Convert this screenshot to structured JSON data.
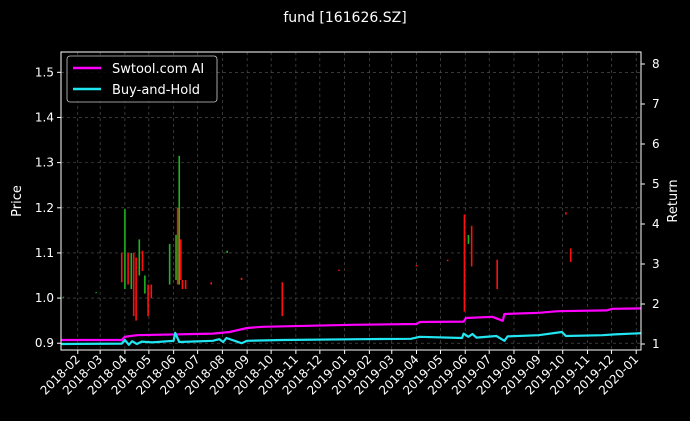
{
  "chart_data": {
    "type": "line",
    "title": "fund [161626.SZ]",
    "ylabel_left": "Price",
    "ylabel_right": "Return",
    "ylim_left": [
      0.885,
      1.545
    ],
    "ylim_right": [
      0.85,
      8.3
    ],
    "left_ticks": [
      0.9,
      1.0,
      1.1,
      1.2,
      1.3,
      1.4,
      1.5
    ],
    "left_tick_labels": [
      "0.9",
      "1.0",
      "1.1",
      "1.2",
      "1.3",
      "1.4",
      "1.5"
    ],
    "right_ticks": [
      1,
      2,
      3,
      4,
      5,
      6,
      7,
      8
    ],
    "right_tick_labels": [
      "1",
      "2",
      "3",
      "4",
      "5",
      "6",
      "7",
      "8"
    ],
    "x_ticks": [
      "2018-02",
      "2018-03",
      "2018-04",
      "2018-05",
      "2018-06",
      "2018-07",
      "2018-08",
      "2018-09",
      "2018-10",
      "2018-11",
      "2018-12",
      "2019-01",
      "2019-02",
      "2019-03",
      "2019-04",
      "2019-05",
      "2019-06",
      "2019-07",
      "2019-08",
      "2019-09",
      "2019-10",
      "2019-11",
      "2019-12",
      "2020-01"
    ],
    "x_range": [
      "2018-01-11",
      "2020-01-07"
    ],
    "grid": true,
    "legend_position": "top-left",
    "series": [
      {
        "name": "Swtool.com AI",
        "color": "#ff00ff",
        "axis": "right",
        "points": [
          [
            "2018-01-11",
            1.1
          ],
          [
            "2018-03-28",
            1.1
          ],
          [
            "2018-04-01",
            1.18
          ],
          [
            "2018-04-16",
            1.22
          ],
          [
            "2018-07-20",
            1.26
          ],
          [
            "2018-08-10",
            1.3
          ],
          [
            "2018-09-01",
            1.4
          ],
          [
            "2018-09-20",
            1.43
          ],
          [
            "2019-01-10",
            1.48
          ],
          [
            "2019-04-01",
            1.5
          ],
          [
            "2019-04-05",
            1.55
          ],
          [
            "2019-05-30",
            1.56
          ],
          [
            "2019-06-02",
            1.65
          ],
          [
            "2019-07-05",
            1.68
          ],
          [
            "2019-07-18",
            1.58
          ],
          [
            "2019-07-20",
            1.75
          ],
          [
            "2019-09-01",
            1.78
          ],
          [
            "2019-09-25",
            1.82
          ],
          [
            "2019-11-25",
            1.84
          ],
          [
            "2019-12-02",
            1.88
          ],
          [
            "2020-01-07",
            1.89
          ]
        ]
      },
      {
        "name": "Buy-and-Hold",
        "color": "#22e5f2",
        "axis": "right",
        "points": [
          [
            "2018-01-11",
            1.0
          ],
          [
            "2018-03-28",
            1.01
          ],
          [
            "2018-04-01",
            1.1
          ],
          [
            "2018-04-06",
            0.98
          ],
          [
            "2018-04-10",
            1.07
          ],
          [
            "2018-04-16",
            1.0
          ],
          [
            "2018-04-22",
            1.06
          ],
          [
            "2018-05-05",
            1.04
          ],
          [
            "2018-06-01",
            1.08
          ],
          [
            "2018-06-03",
            1.28
          ],
          [
            "2018-06-08",
            1.05
          ],
          [
            "2018-07-20",
            1.08
          ],
          [
            "2018-07-28",
            1.12
          ],
          [
            "2018-08-02",
            1.05
          ],
          [
            "2018-08-06",
            1.15
          ],
          [
            "2018-08-25",
            1.02
          ],
          [
            "2018-09-01",
            1.08
          ],
          [
            "2018-10-15",
            1.1
          ],
          [
            "2019-01-20",
            1.12
          ],
          [
            "2019-03-25",
            1.13
          ],
          [
            "2019-04-05",
            1.18
          ],
          [
            "2019-05-28",
            1.15
          ],
          [
            "2019-05-30",
            1.26
          ],
          [
            "2019-06-05",
            1.18
          ],
          [
            "2019-06-10",
            1.25
          ],
          [
            "2019-06-15",
            1.16
          ],
          [
            "2019-07-10",
            1.2
          ],
          [
            "2019-07-20",
            1.08
          ],
          [
            "2019-07-24",
            1.19
          ],
          [
            "2019-09-01",
            1.22
          ],
          [
            "2019-09-30",
            1.3
          ],
          [
            "2019-10-05",
            1.2
          ],
          [
            "2019-11-20",
            1.22
          ],
          [
            "2019-12-05",
            1.24
          ],
          [
            "2020-01-07",
            1.27
          ]
        ]
      }
    ],
    "candles": {
      "axis": "left",
      "up_color": "#1db521",
      "down_color": "#ff1010",
      "bars": [
        [
          "2018-01-14",
          1.002,
          1.003,
          "up"
        ],
        [
          "2018-02-24",
          1.015,
          1.013,
          "up"
        ],
        [
          "2018-03-28",
          1.035,
          1.1,
          "down"
        ],
        [
          "2018-04-01",
          1.02,
          1.197,
          "up"
        ],
        [
          "2018-04-05",
          1.03,
          1.1,
          "down"
        ],
        [
          "2018-04-09",
          1.02,
          1.1,
          "up"
        ],
        [
          "2018-04-12",
          0.96,
          1.1,
          "down"
        ],
        [
          "2018-04-15",
          0.95,
          1.09,
          "down"
        ],
        [
          "2018-04-19",
          1.05,
          1.13,
          "up"
        ],
        [
          "2018-04-23",
          1.06,
          1.105,
          "down"
        ],
        [
          "2018-04-26",
          1.01,
          1.05,
          "up"
        ],
        [
          "2018-04-30",
          0.96,
          1.03,
          "down"
        ],
        [
          "2018-05-04",
          1.0,
          1.03,
          "down"
        ],
        [
          "2018-05-27",
          1.03,
          1.12,
          "up"
        ],
        [
          "2018-06-04",
          1.04,
          1.14,
          "up"
        ],
        [
          "2018-06-06",
          1.03,
          1.2,
          "down"
        ],
        [
          "2018-06-08",
          1.03,
          1.315,
          "up"
        ],
        [
          "2018-06-10",
          1.04,
          1.13,
          "down"
        ],
        [
          "2018-06-12",
          1.02,
          1.04,
          "down"
        ],
        [
          "2018-06-16",
          1.02,
          1.04,
          "down"
        ],
        [
          "2018-07-18",
          1.03,
          1.035,
          "down"
        ],
        [
          "2018-08-07",
          1.1,
          1.105,
          "up"
        ],
        [
          "2018-08-25",
          1.04,
          1.045,
          "down"
        ],
        [
          "2018-10-15",
          0.96,
          1.035,
          "down"
        ],
        [
          "2018-12-25",
          1.06,
          1.063,
          "down"
        ],
        [
          "2019-04-01",
          1.07,
          1.073,
          "down"
        ],
        [
          "2019-05-10",
          1.082,
          1.085,
          "down"
        ],
        [
          "2019-05-31",
          0.97,
          1.185,
          "down"
        ],
        [
          "2019-06-05",
          1.12,
          1.14,
          "up"
        ],
        [
          "2019-06-09",
          1.07,
          1.16,
          "down"
        ],
        [
          "2019-07-11",
          1.02,
          1.085,
          "down"
        ],
        [
          "2019-10-05",
          1.185,
          1.19,
          "down"
        ],
        [
          "2019-10-11",
          1.08,
          1.11,
          "down"
        ]
      ]
    }
  }
}
